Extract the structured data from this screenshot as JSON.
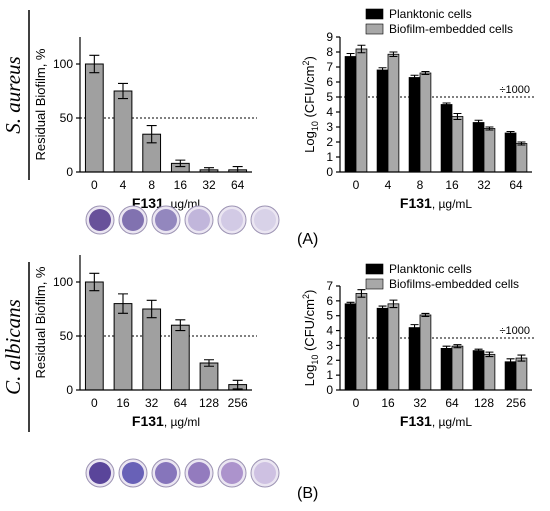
{
  "panels": [
    {
      "label": "(A)",
      "organism": "S. aureus"
    },
    {
      "label": "(B)",
      "organism": "C. albicans"
    }
  ],
  "chart_data": [
    {
      "type": "bar",
      "panel": "(A)",
      "categories": [
        "0",
        "4",
        "8",
        "16",
        "32",
        "64"
      ],
      "series": [
        {
          "values": [
            100,
            75,
            35,
            8,
            2,
            2
          ],
          "errors": [
            8,
            7,
            8,
            3,
            2,
            3
          ],
          "color": "#a0a0a0"
        }
      ],
      "title": "",
      "xlabel_bold": "F131",
      "xlabel_unit": ", µg/ml",
      "ylabel": "Residual Biofilm, %",
      "ylim": [
        0,
        125
      ],
      "yticks": [
        0,
        50,
        100
      ],
      "reference_line": 50
    },
    {
      "type": "bar",
      "panel": "(A)",
      "categories": [
        "0",
        "4",
        "8",
        "16",
        "32",
        "64"
      ],
      "series": [
        {
          "name": "Planktonic cells",
          "color": "#000000",
          "values": [
            7.7,
            6.8,
            6.3,
            4.5,
            3.3,
            2.6
          ],
          "errors": [
            0.2,
            0.15,
            0.15,
            0.1,
            0.15,
            0.1
          ]
        },
        {
          "name": "Biofilm-embedded cells",
          "color": "#a8a8a8",
          "values": [
            8.2,
            7.85,
            6.6,
            3.7,
            2.9,
            1.9
          ],
          "errors": [
            0.25,
            0.15,
            0.1,
            0.2,
            0.1,
            0.1
          ]
        }
      ],
      "title": "",
      "xlabel_bold": "F131",
      "xlabel_unit": ", µg/mL",
      "ylabel_prefix": "Log",
      "ylabel_sub": "10",
      "ylabel_main": " (CFU/cm",
      "ylabel_sup": "2",
      "ylabel_end": ")",
      "ylim": [
        0,
        9
      ],
      "yticks": [
        0,
        1,
        2,
        3,
        4,
        5,
        6,
        7,
        8,
        9
      ],
      "reference_line": 5,
      "reference_label": "÷1000",
      "legend_position": "top"
    },
    {
      "type": "bar",
      "panel": "(B)",
      "categories": [
        "0",
        "16",
        "32",
        "64",
        "128",
        "256"
      ],
      "series": [
        {
          "values": [
            100,
            80,
            75,
            60,
            25,
            5
          ],
          "errors": [
            8,
            9,
            8,
            5,
            3,
            4
          ],
          "color": "#a0a0a0"
        }
      ],
      "title": "",
      "xlabel_bold": "F131",
      "xlabel_unit": ", µg/ml",
      "ylabel": "Residual Biofilm, %",
      "ylim": [
        0,
        125
      ],
      "yticks": [
        0,
        50,
        100
      ],
      "reference_line": 50
    },
    {
      "type": "bar",
      "panel": "(B)",
      "categories": [
        "0",
        "16",
        "32",
        "64",
        "128",
        "256"
      ],
      "series": [
        {
          "name": "Planktonic cells",
          "color": "#000000",
          "values": [
            5.8,
            5.5,
            4.2,
            2.8,
            2.65,
            1.9
          ],
          "errors": [
            0.1,
            0.15,
            0.2,
            0.15,
            0.1,
            0.2
          ]
        },
        {
          "name": "Biofilms-embedded cells",
          "color": "#a8a8a8",
          "values": [
            6.5,
            5.8,
            5.05,
            2.95,
            2.4,
            2.15
          ],
          "errors": [
            0.25,
            0.25,
            0.1,
            0.1,
            0.15,
            0.2
          ]
        }
      ],
      "title": "",
      "xlabel_bold": "F131",
      "xlabel_unit": ", µg/mL",
      "ylabel_prefix": "Log",
      "ylabel_sub": "10",
      "ylabel_main": " (CFU/cm",
      "ylabel_sup": "2",
      "ylabel_end": ")",
      "ylim": [
        0,
        7
      ],
      "yticks": [
        0,
        1,
        2,
        3,
        4,
        5,
        6,
        7
      ],
      "reference_line": 3.5,
      "reference_label": "÷1000",
      "legend_position": "top"
    }
  ],
  "wells": [
    {
      "panel": "(A)",
      "colors": [
        "#5a4090",
        "#7565a8",
        "#8a7cb8",
        "#bdb0d8",
        "#cfc6e3",
        "#d6cfe7"
      ]
    },
    {
      "panel": "(B)",
      "colors": [
        "#4a3390",
        "#5a52b0",
        "#7b68b5",
        "#8a6fb8",
        "#a58ac8",
        "#cbbde0"
      ]
    }
  ]
}
